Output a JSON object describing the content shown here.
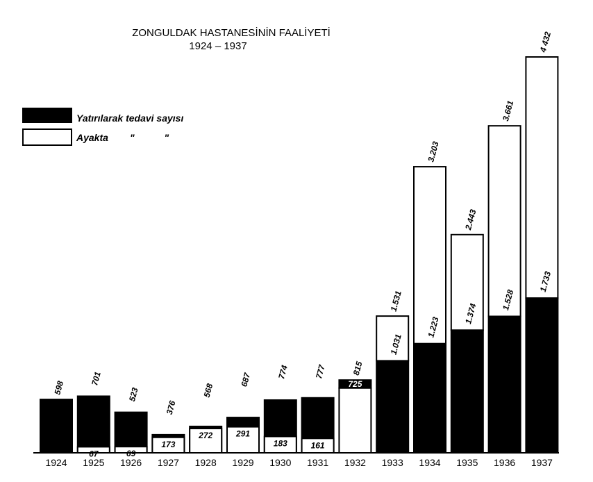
{
  "chart_data": {
    "type": "bar",
    "title": "ZONGULDAK  HASTANESİNİN  FAALİYETİ",
    "subtitle": "1924 – 1937",
    "categories": [
      "1924",
      "1925",
      "1926",
      "1927",
      "1928",
      "1929",
      "1930",
      "1931",
      "1932",
      "1933",
      "1934",
      "1935",
      "1936",
      "1937"
    ],
    "series": [
      {
        "name": "Yatırılarak tedavi sayısı",
        "color": "#000000",
        "values": [
          598,
          634,
          454,
          203,
          296,
          396,
          591,
          616,
          90,
          1031,
          1223,
          1374,
          1528,
          1733
        ],
        "labels": [
          "",
          "",
          "",
          "",
          "",
          "",
          "",
          "",
          "",
          "1.031",
          "1.223",
          "1.374",
          "1.528",
          "1.733"
        ]
      },
      {
        "name": "Ayakta",
        "color": "#ffffff",
        "values": [
          0,
          67,
          69,
          173,
          272,
          291,
          183,
          161,
          725,
          500,
          1980,
          1069,
          2133,
          2699
        ],
        "labels": [
          "",
          "67",
          "69",
          "173",
          "272",
          "291",
          "183",
          "161",
          "725",
          "",
          "",
          "",
          "",
          ""
        ]
      }
    ],
    "totals": [
      598,
      701,
      523,
      376,
      568,
      687,
      774,
      777,
      815,
      1531,
      3203,
      2443,
      3661,
      4432
    ],
    "total_labels": [
      "598",
      "701",
      "523",
      "376",
      "568",
      "687",
      "774",
      "777",
      "815",
      "1.531",
      "3.203",
      "2.443",
      "3.661",
      "4 432"
    ],
    "legend": [
      {
        "label": "Yatırılarak tedavi sayısı",
        "color": "#000000"
      },
      {
        "label": "Ayakta        \"           \"",
        "color": "#ffffff"
      }
    ],
    "legend_position": "top-left",
    "xlabel": "",
    "ylabel": "",
    "ylim": [
      0,
      4432
    ],
    "grid": false
  }
}
